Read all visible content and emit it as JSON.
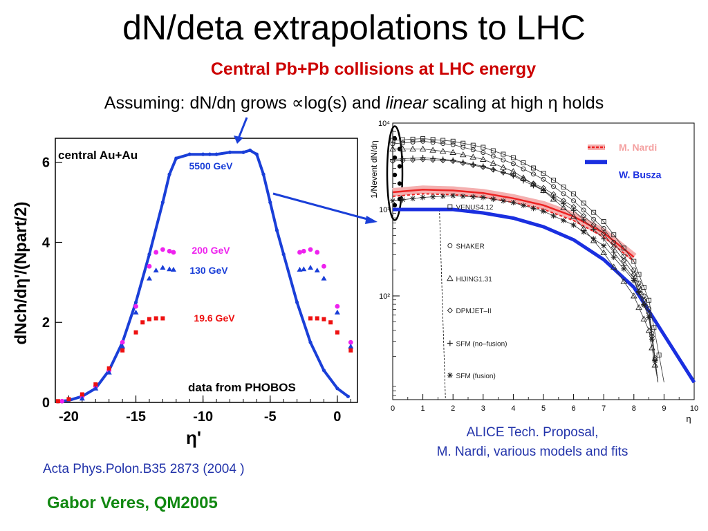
{
  "slide": {
    "title": "dN/deta extrapolations to LHC",
    "subtitle": "Central Pb+Pb collisions at LHC energy",
    "assumption": {
      "prefix": "Assuming: dN/dη grows ∝log(s) and ",
      "italic": "linear",
      "suffix": " scaling at high η holds"
    },
    "reference_left": "Acta Phys.Polon.B35 2873 (2004 )",
    "reference_right_line1": "ALICE Tech. Proposal,",
    "reference_right_line2": "M. Nardi, various models and fits",
    "author": "Gabor Veres, QM2005"
  },
  "chart_data": [
    {
      "type": "scatter",
      "title": "",
      "xlabel": "η'",
      "ylabel": "dNch/dη'/(Npart/2)",
      "xlim": [
        -21,
        1.5
      ],
      "ylim": [
        0,
        6.6
      ],
      "xticks": [
        "-20",
        "-15",
        "-10",
        "-5",
        "0"
      ],
      "xtick_values": [
        -20,
        -15,
        -10,
        -5,
        0
      ],
      "yticks": [
        "0",
        "2",
        "4",
        "6"
      ],
      "ytick_values": [
        0,
        2,
        4,
        6
      ],
      "annotations": {
        "top": "central Au+Au",
        "bottom": "data from PHOBOS"
      },
      "series": [
        {
          "name": "5500 GeV",
          "color": "#1a3fd8",
          "kind": "curve",
          "x": [
            -20.8,
            -20,
            -19,
            -18,
            -17,
            -16,
            -15,
            -14,
            -13,
            -12.5,
            -12,
            -11,
            -10,
            -9.5,
            -9,
            -8,
            -7,
            -6.5,
            -6,
            -5.5,
            -5,
            -4.5,
            -4,
            -3,
            -2,
            -1,
            0,
            0.8
          ],
          "y": [
            0.02,
            0.05,
            0.15,
            0.35,
            0.8,
            1.5,
            2.5,
            3.7,
            5.0,
            5.7,
            6.1,
            6.2,
            6.2,
            6.2,
            6.2,
            6.25,
            6.25,
            6.3,
            6.2,
            5.7,
            5.0,
            4.3,
            3.7,
            2.5,
            1.5,
            0.8,
            0.35,
            0.15
          ]
        },
        {
          "name": "200 GeV",
          "color": "#ee22ee",
          "kind": "plateau",
          "x": [
            -20.5,
            -19,
            -18,
            -17,
            -16,
            -15,
            -14,
            -13.5,
            -13,
            -12.5,
            -12.2
          ],
          "y": [
            0.03,
            0.15,
            0.4,
            0.8,
            1.5,
            2.4,
            3.4,
            3.75,
            3.82,
            3.78,
            3.75
          ]
        },
        {
          "name": "130 GeV",
          "color": "#1a3fd8",
          "kind": "plateau",
          "x": [
            -19,
            -18,
            -17,
            -16,
            -15,
            -14,
            -13.5,
            -13,
            -12.5,
            -12.2
          ],
          "y": [
            0.1,
            0.35,
            0.75,
            1.4,
            2.25,
            3.1,
            3.3,
            3.37,
            3.33,
            3.32
          ]
        },
        {
          "name": "19.6 GeV",
          "color": "#ee1111",
          "kind": "plateau",
          "x": [
            -20.8,
            -20,
            -19,
            -18,
            -17,
            -16,
            -15,
            -14.5,
            -14,
            -13.5,
            -13
          ],
          "y": [
            0.03,
            0.08,
            0.2,
            0.45,
            0.85,
            1.3,
            1.75,
            2.0,
            2.08,
            2.1,
            2.1
          ]
        }
      ]
    },
    {
      "type": "line",
      "title": "",
      "xlabel": "η",
      "ylabel": "1/Nevent dN/dη",
      "xlim": [
        0,
        10
      ],
      "ylim": [
        0.8,
        4.0
      ],
      "log_y": true,
      "xticks": [
        "0",
        "1",
        "2",
        "3",
        "4",
        "5",
        "6",
        "7",
        "8",
        "9",
        "10"
      ],
      "xtick_values": [
        0,
        1,
        2,
        3,
        4,
        5,
        6,
        7,
        8,
        9,
        10
      ],
      "yticks": [
        "10²",
        "10³",
        "10⁴"
      ],
      "ytick_values": [
        2,
        3,
        4
      ],
      "legend": {
        "position": "top-right",
        "entries": [
          "M. Nardi",
          "W. Busza"
        ]
      },
      "model_labels": [
        "VENUS4.12",
        "SHAKER",
        "HIJING1.31",
        "DPMJET–II",
        "SFM (no–fusion)",
        "SFM (fusion)"
      ],
      "series": [
        {
          "name": "W. Busza",
          "color": "#1a2fe0",
          "x": [
            0,
            1,
            2,
            3,
            4,
            5,
            6,
            7,
            8,
            9,
            10
          ],
          "y": [
            3.0,
            3.0,
            3.0,
            2.96,
            2.9,
            2.8,
            2.65,
            2.42,
            2.1,
            1.55,
            1.0
          ]
        },
        {
          "name": "M. Nardi",
          "color": "#ee2222",
          "x": [
            0,
            1,
            2,
            3,
            4,
            5,
            6,
            7,
            8
          ],
          "y": [
            3.2,
            3.23,
            3.22,
            3.19,
            3.13,
            3.05,
            2.92,
            2.73,
            2.45
          ]
        },
        {
          "name": "VENUS4.12",
          "color": "#222222",
          "marker": "square",
          "x": [
            0,
            1,
            2,
            3,
            4,
            5,
            6,
            7,
            8,
            8.5,
            9
          ],
          "y": [
            3.8,
            3.82,
            3.79,
            3.72,
            3.6,
            3.42,
            3.18,
            2.86,
            2.4,
            1.95,
            1.0
          ]
        },
        {
          "name": "SHAKER",
          "color": "#222222",
          "marker": "circle",
          "x": [
            0,
            1,
            2,
            3,
            4,
            5,
            6,
            7,
            8,
            8.5,
            8.8
          ],
          "y": [
            3.76,
            3.79,
            3.75,
            3.66,
            3.53,
            3.35,
            3.1,
            2.78,
            2.3,
            1.85,
            1.0
          ]
        },
        {
          "name": "HIJING1.31",
          "color": "#222222",
          "marker": "triangle",
          "x": [
            0,
            1,
            2,
            3,
            4,
            5,
            6,
            7,
            8,
            8.5,
            8.8
          ],
          "y": [
            3.7,
            3.7,
            3.66,
            3.58,
            3.44,
            3.22,
            2.92,
            2.5,
            2.0,
            1.6,
            1.0
          ]
        },
        {
          "name": "DPMJET–II",
          "color": "#222222",
          "marker": "diamond",
          "x": [
            0,
            1,
            2,
            3,
            4,
            5,
            6,
            7,
            8,
            8.5,
            8.8
          ],
          "y": [
            3.56,
            3.58,
            3.56,
            3.49,
            3.4,
            3.25,
            3.03,
            2.72,
            2.25,
            1.8,
            1.0
          ]
        },
        {
          "name": "SFM (no–fusion)",
          "color": "#222222",
          "marker": "cross",
          "x": [
            0,
            1,
            2,
            3,
            4,
            5,
            6,
            7,
            8,
            8.5,
            8.8
          ],
          "y": [
            3.58,
            3.6,
            3.57,
            3.5,
            3.39,
            3.22,
            2.99,
            2.66,
            2.2,
            1.75,
            1.0
          ]
        },
        {
          "name": "SFM (fusion)",
          "color": "#222222",
          "marker": "star",
          "x": [
            0,
            1,
            2,
            3,
            4,
            5,
            6,
            7,
            8,
            8.5,
            8.8
          ],
          "y": [
            3.1,
            3.14,
            3.16,
            3.14,
            3.08,
            2.98,
            2.82,
            2.58,
            2.18,
            1.75,
            1.0
          ]
        }
      ]
    }
  ]
}
